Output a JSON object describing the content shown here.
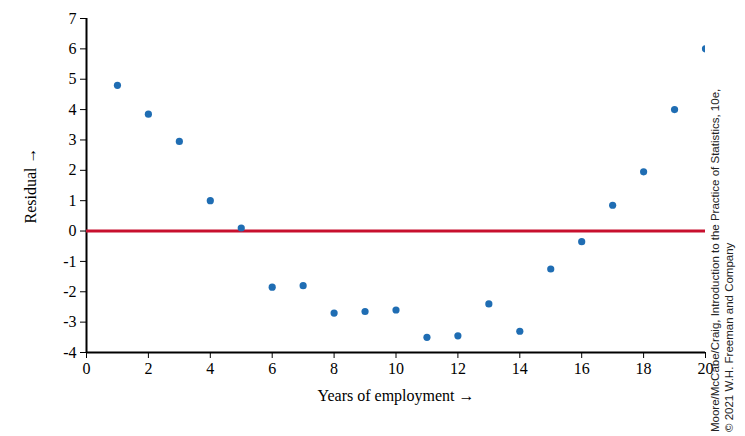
{
  "chart_data": {
    "type": "scatter",
    "xlabel": "Years of employment",
    "ylabel": "Residual",
    "x": [
      1,
      2,
      3,
      4,
      5,
      6,
      7,
      8,
      9,
      10,
      11,
      12,
      13,
      14,
      15,
      16,
      17,
      18,
      19,
      20
    ],
    "values": [
      4.8,
      3.85,
      2.95,
      1.0,
      0.1,
      -1.85,
      -1.8,
      -2.7,
      -2.65,
      -2.6,
      -3.5,
      -3.45,
      -2.4,
      -3.3,
      -1.25,
      -0.35,
      0.85,
      1.95,
      4.0,
      6.0
    ],
    "color": "#1f6db3",
    "marker": "circle",
    "xlim": [
      0,
      20
    ],
    "xticks": [
      0,
      2,
      4,
      6,
      8,
      10,
      12,
      14,
      16,
      18,
      20
    ],
    "ylim": [
      -4,
      7
    ],
    "yticks": [
      -4,
      -3,
      -2,
      -1,
      0,
      1,
      2,
      3,
      4,
      5,
      6,
      7
    ],
    "grid": false,
    "reference_line": {
      "value": 0,
      "color": "#c8102e"
    },
    "credit": [
      "Moore/McCabe/Craig, Introduction to the Practice of Statistics, 10e,",
      "© 2021 W.H. Freeman and Company"
    ]
  }
}
